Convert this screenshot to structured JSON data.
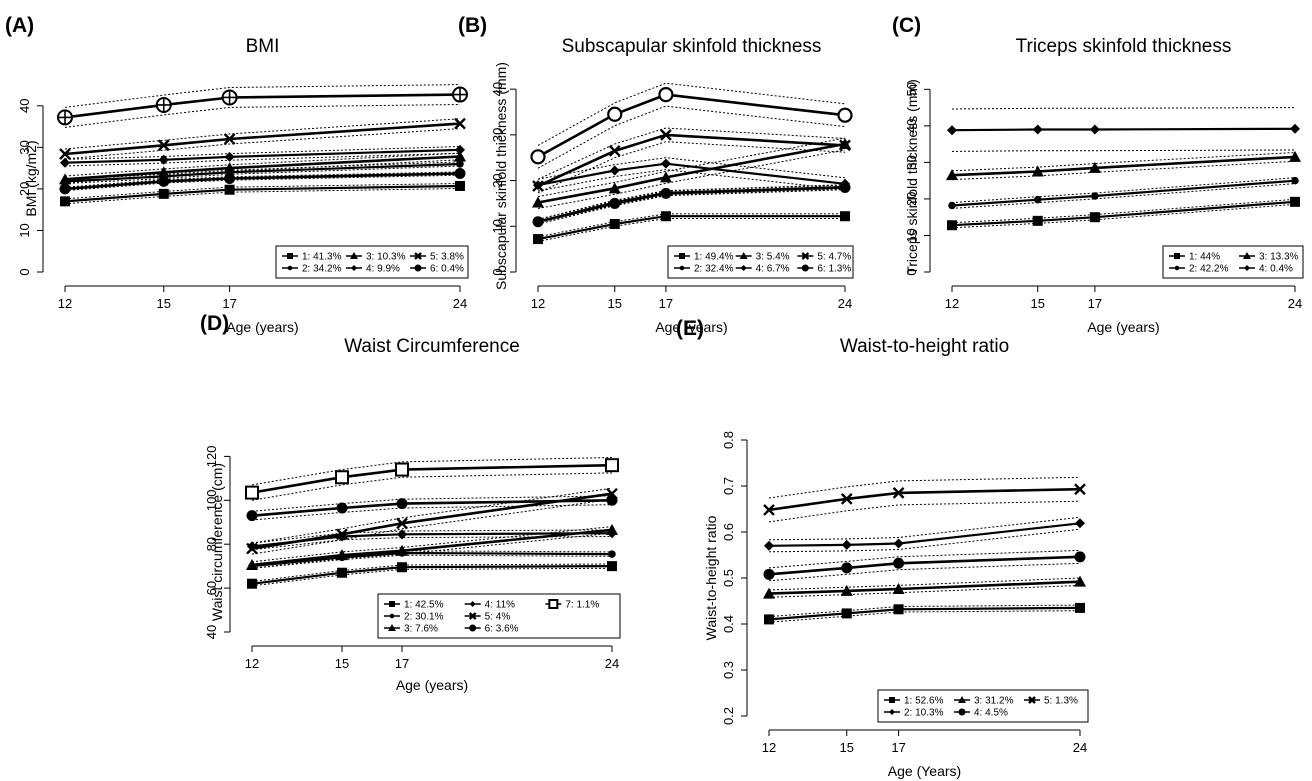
{
  "chart_data": [
    {
      "panel": "(A)",
      "type": "line",
      "title": "BMI",
      "xlabel": "Age (years)",
      "ylabel": "BMI (kg/m2)",
      "x": [
        12,
        15,
        17,
        24
      ],
      "xticks": [
        "12",
        "15",
        "17",
        "24"
      ],
      "yticks": [
        "0",
        "10",
        "20",
        "30",
        "40"
      ],
      "ylim": [
        0,
        45
      ],
      "legend_position": "bottom-right",
      "legend_columns": 3,
      "series": [
        {
          "name": "1: 41.3%",
          "marker": "square",
          "values": [
            17,
            18.8,
            19.8,
            20.7
          ],
          "band": 0.6
        },
        {
          "name": "2: 34.2%",
          "marker": "dot",
          "values": [
            21.8,
            23,
            24,
            26
          ],
          "band": 0.5
        },
        {
          "name": "3: 10.3%",
          "marker": "triangle",
          "values": [
            22.3,
            24,
            25,
            27.8
          ],
          "band": 0.8
        },
        {
          "name": "4: 9.9%",
          "marker": "diamond",
          "values": [
            26.3,
            27,
            27.7,
            29.4
          ],
          "band": 0.8
        },
        {
          "name": "5: 3.8%",
          "marker": "cross",
          "values": [
            28.4,
            30.5,
            32,
            35.7
          ],
          "band": 1.2
        },
        {
          "name": "6: 0.4%",
          "marker": "circle",
          "values": [
            20,
            21.8,
            22.5,
            23.7
          ],
          "band": 0.4
        },
        {
          "name": "",
          "marker": "circle-plus",
          "values": [
            37.2,
            40.2,
            42,
            42.7
          ],
          "band": 2.4
        }
      ]
    },
    {
      "panel": "(B)",
      "type": "line",
      "title": "Subscapular skinfold thickness",
      "xlabel": "Age (years)",
      "ylabel": "Subscapular skinfold thickness (mm)",
      "x": [
        12,
        15,
        17,
        24
      ],
      "xticks": [
        "12",
        "15",
        "17",
        "24"
      ],
      "yticks": [
        "0",
        "10",
        "20",
        "30",
        "40"
      ],
      "ylim": [
        0,
        42
      ],
      "legend_position": "bottom-right",
      "legend_columns": 3,
      "series": [
        {
          "name": "1: 49.4%",
          "marker": "square",
          "values": [
            7.2,
            10.5,
            12.2,
            12.2
          ],
          "band": 0.5
        },
        {
          "name": "2: 32.4%",
          "marker": "dot",
          "values": [
            11,
            15.2,
            17.3,
            18.6
          ],
          "band": 0.5
        },
        {
          "name": "3: 5.4%",
          "marker": "triangle",
          "values": [
            15.2,
            18.3,
            20.7,
            28
          ],
          "band": 1.3
        },
        {
          "name": "4: 6.7%",
          "marker": "diamond",
          "values": [
            19,
            22.2,
            23.7,
            19.3
          ],
          "band": 1.3
        },
        {
          "name": "5: 4.7%",
          "marker": "cross",
          "values": [
            18.8,
            26.5,
            30,
            27.7
          ],
          "band": 1.5
        },
        {
          "name": "6: 1.3%",
          "marker": "circle",
          "values": [
            11,
            15,
            17.2,
            18.5
          ],
          "band": 0.5
        },
        {
          "name": "",
          "marker": "circle-open",
          "values": [
            25.2,
            34.5,
            38.8,
            34.3
          ],
          "band": 2.5
        }
      ]
    },
    {
      "panel": "(C)",
      "type": "line",
      "title": "Triceps skinfold thickness",
      "xlabel": "Age (years)",
      "ylabel": "Triceps skinfold thickness (mm)",
      "x": [
        12,
        15,
        17,
        24
      ],
      "xticks": [
        "12",
        "15",
        "17",
        "24"
      ],
      "yticks": [
        "0",
        "10",
        "20",
        "30",
        "40",
        "50"
      ],
      "ylim": [
        0,
        52
      ],
      "legend_position": "bottom-right",
      "legend_columns": 2,
      "series": [
        {
          "name": "1: 44%",
          "marker": "square",
          "values": [
            12.8,
            14,
            15,
            19.2
          ],
          "band": 0.7
        },
        {
          "name": "2: 42.2%",
          "marker": "dot",
          "values": [
            18.2,
            19.8,
            20.8,
            25
          ],
          "band": 0.8
        },
        {
          "name": "3: 13.3%",
          "marker": "triangle",
          "values": [
            26.5,
            27.5,
            28.5,
            31.5
          ],
          "band": 1.2
        },
        {
          "name": "4: 0.4%",
          "marker": "diamond",
          "values": [
            38.8,
            39,
            39,
            39.2
          ],
          "band": 5.8
        }
      ]
    },
    {
      "panel": "(D)",
      "type": "line",
      "title": "Waist Circumference",
      "xlabel": "Age (years)",
      "ylabel": "Waist circumference (cm)",
      "x": [
        12,
        15,
        17,
        24
      ],
      "xticks": [
        "12",
        "15",
        "17",
        "24"
      ],
      "yticks": [
        "40",
        "60",
        "80",
        "100",
        "120"
      ],
      "ylim": [
        40,
        122
      ],
      "legend_position": "bottom-right",
      "legend_columns": 3,
      "series": [
        {
          "name": "1: 42.5%",
          "marker": "square",
          "values": [
            62,
            67,
            69.5,
            70
          ],
          "band": 1
        },
        {
          "name": "2: 30.1%",
          "marker": "dot",
          "values": [
            70,
            74,
            76,
            75.5
          ],
          "band": 1
        },
        {
          "name": "3: 7.6%",
          "marker": "triangle",
          "values": [
            70.5,
            75,
            77,
            86.5
          ],
          "band": 1.5
        },
        {
          "name": "4: 11%",
          "marker": "diamond",
          "values": [
            79,
            83.5,
            84.5,
            85
          ],
          "band": 1.5
        },
        {
          "name": "5: 4%",
          "marker": "cross",
          "values": [
            78,
            84.5,
            89.5,
            103
          ],
          "band": 2.5
        },
        {
          "name": "6: 3.6%",
          "marker": "circle",
          "values": [
            93,
            96.5,
            98.5,
            100
          ],
          "band": 2
        },
        {
          "name": "7: 1.1%",
          "marker": "square-open",
          "values": [
            103.5,
            110.5,
            114,
            116
          ],
          "band": 3.5
        }
      ]
    },
    {
      "panel": "(E)",
      "type": "line",
      "title": "Waist-to-height ratio",
      "xlabel": "Age (Years)",
      "ylabel": "Waist-to-height ratio",
      "x": [
        12,
        15,
        17,
        24
      ],
      "xticks": [
        "12",
        "15",
        "17",
        "24"
      ],
      "yticks": [
        "0.2",
        "0.3",
        "0.4",
        "0.5",
        "0.6",
        "0.7",
        "0.8"
      ],
      "ylim": [
        0.2,
        0.8
      ],
      "legend_position": "bottom-right",
      "legend_columns": 3,
      "series": [
        {
          "name": "1: 52.6%",
          "marker": "square",
          "values": [
            0.41,
            0.423,
            0.432,
            0.435
          ],
          "band": 0.006
        },
        {
          "name": "2: 10.3%",
          "marker": "diamond",
          "values": [
            0.57,
            0.572,
            0.575,
            0.619
          ],
          "band": 0.013
        },
        {
          "name": "3: 31.2%",
          "marker": "triangle",
          "values": [
            0.466,
            0.472,
            0.476,
            0.492
          ],
          "band": 0.008
        },
        {
          "name": "4: 4.5%",
          "marker": "circle",
          "values": [
            0.508,
            0.522,
            0.532,
            0.546
          ],
          "band": 0.014
        },
        {
          "name": "5: 1.3%",
          "marker": "cross",
          "values": [
            0.648,
            0.672,
            0.685,
            0.693
          ],
          "band": 0.026
        }
      ]
    }
  ]
}
